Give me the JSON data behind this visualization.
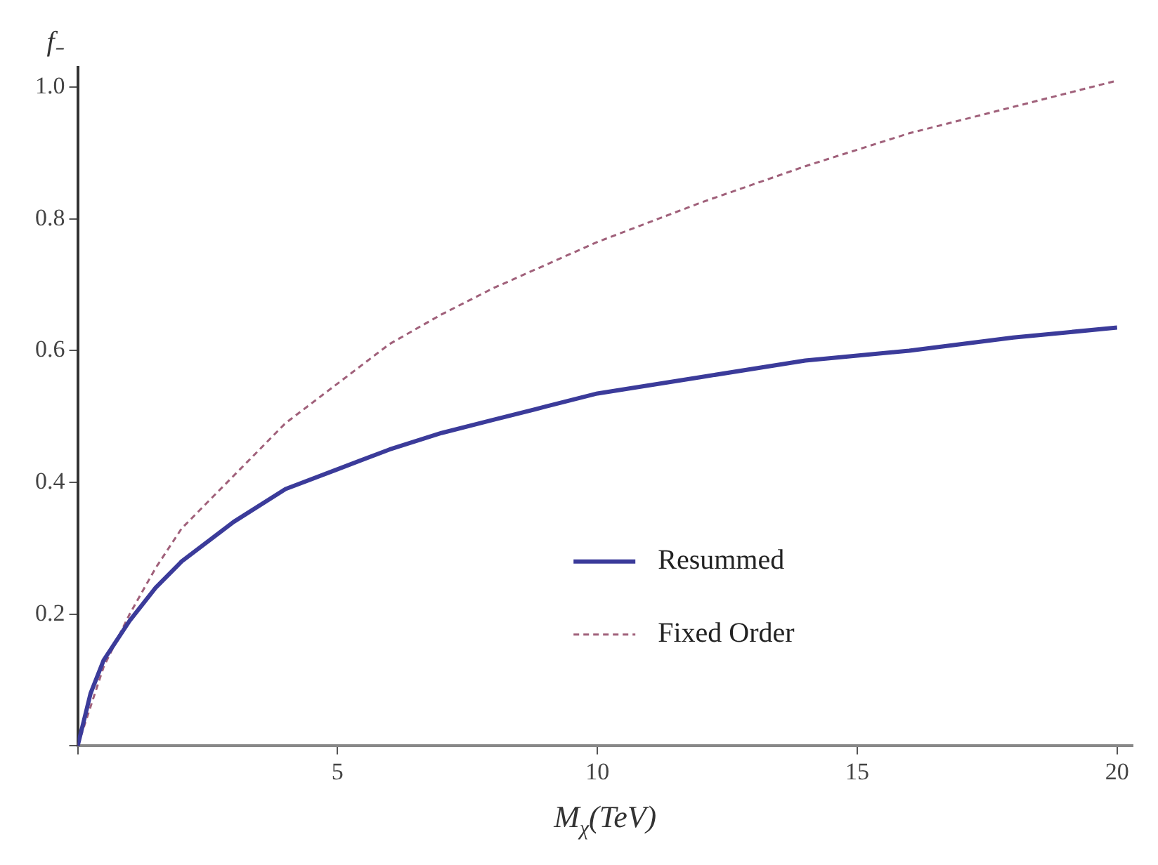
{
  "chart_data": {
    "type": "line",
    "xlabel": "M$_{χ}$(TeV)",
    "ylabel": "f₋",
    "xlim": [
      0,
      20.3
    ],
    "ylim": [
      0,
      1.03
    ],
    "xticks": [
      {
        "value": 0,
        "label": null
      },
      5,
      10,
      15,
      20
    ],
    "yticks": [
      {
        "value": 0,
        "label": null
      },
      0.2,
      0.4,
      0.6,
      0.8,
      {
        "value": 1,
        "label": "1.0"
      }
    ],
    "grid": false,
    "legend": "right",
    "marker": "none",
    "series": [
      {
        "name": "Resummed",
        "color": "#3b3b9a",
        "line_style": "solid",
        "x": [
          0,
          0.25,
          0.5,
          1,
          1.5,
          2,
          3,
          4,
          5,
          6,
          7,
          8,
          9,
          10,
          12,
          14,
          16,
          18,
          20
        ],
        "values": [
          0,
          0.08,
          0.13,
          0.19,
          0.24,
          0.28,
          0.34,
          0.39,
          0.42,
          0.45,
          0.475,
          0.495,
          0.515,
          0.535,
          0.56,
          0.585,
          0.6,
          0.62,
          0.635
        ]
      },
      {
        "name": "Fixed Order",
        "color": "#a0607a",
        "line_style": "dashed",
        "x": [
          0,
          0.5,
          1,
          1.5,
          2,
          3,
          4,
          5,
          6,
          7,
          8,
          10,
          12,
          14,
          16,
          18,
          20
        ],
        "values": [
          0,
          0.12,
          0.2,
          0.27,
          0.33,
          0.41,
          0.49,
          0.55,
          0.61,
          0.655,
          0.695,
          0.765,
          0.825,
          0.88,
          0.93,
          0.97,
          1.01
        ]
      }
    ]
  }
}
